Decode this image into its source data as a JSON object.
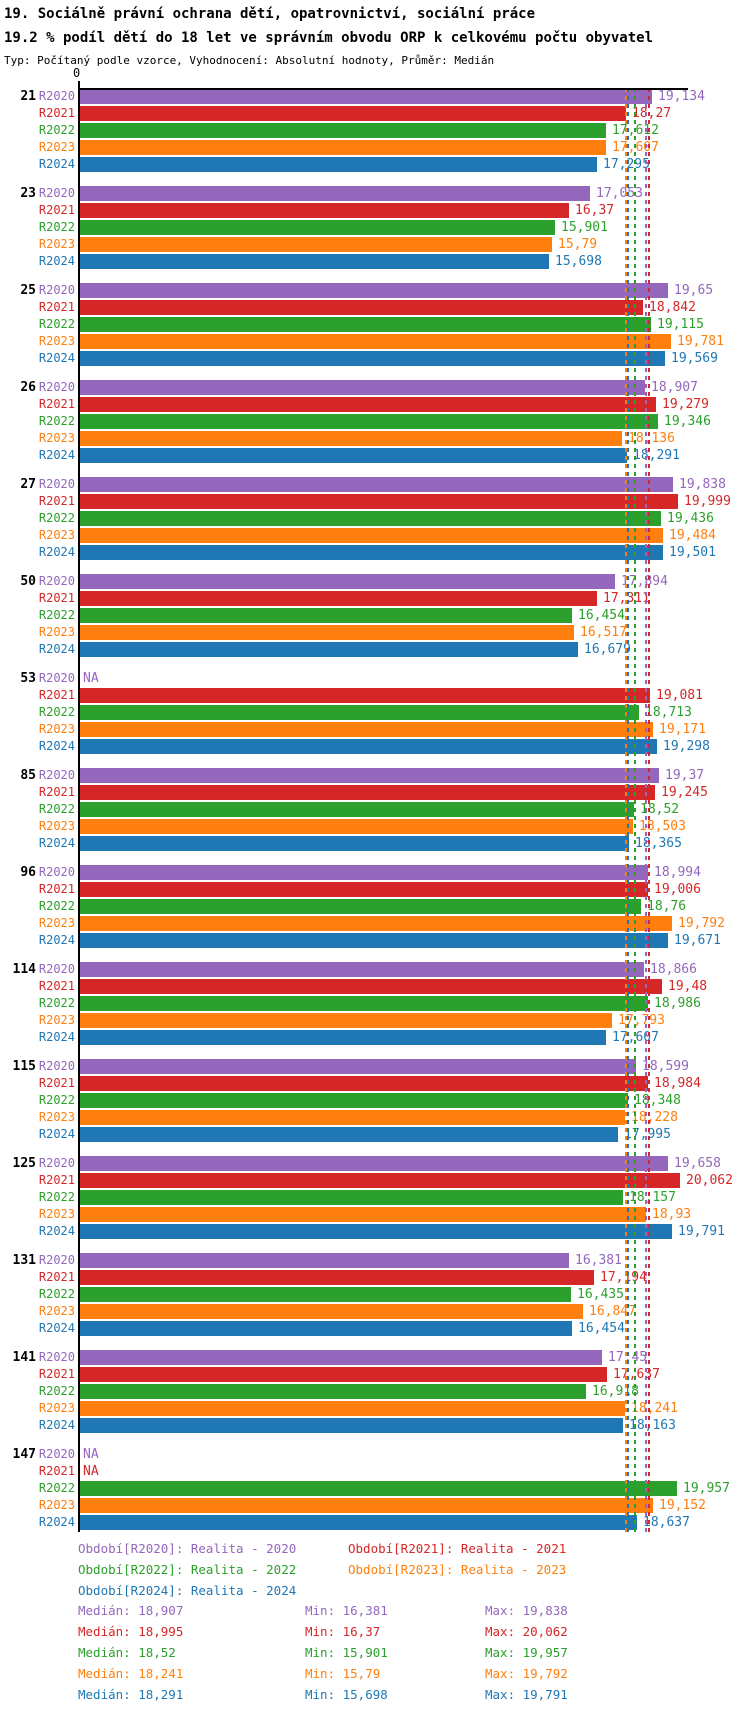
{
  "header": {
    "title": "19. Sociálně právní ochrana dětí, opatrovnictví, sociální práce",
    "subtitle": "19.2 % podíl dětí do 18 let ve správním obvodu ORP k celkovému počtu obyvatel",
    "meta": "Typ: Počítaný podle vzorce, Vyhodnocení: Absolutní hodnoty, Průměr: Medián"
  },
  "chart_data": {
    "type": "bar",
    "orientation": "horizontal",
    "x_zero_label": "0",
    "na_label": "NA",
    "axis_range": [
      0,
      20.4
    ],
    "grid": false,
    "legend_position": "bottom",
    "categories": [
      "21",
      "23",
      "25",
      "26",
      "27",
      "50",
      "53",
      "85",
      "96",
      "114",
      "115",
      "125",
      "131",
      "141",
      "147"
    ],
    "series": [
      {
        "name": "R2020",
        "color": "#9467bd",
        "legend_label": "Období[R2020]: Realita - 2020",
        "values": [
          19.134,
          17.053,
          19.65,
          18.907,
          19.838,
          17.894,
          null,
          19.37,
          18.994,
          18.866,
          18.599,
          19.658,
          16.381,
          17.45,
          null
        ],
        "labels": [
          "19,134",
          "17,053",
          "19,65",
          "18,907",
          "19,838",
          "17,894",
          "NA",
          "19,37",
          "18,994",
          "18,866",
          "18,599",
          "19,658",
          "16,381",
          "17,45",
          "NA"
        ],
        "median": 18.907,
        "stats": {
          "median": "Medián: 18,907",
          "min": "Min: 16,381",
          "max": "Max: 19,838"
        }
      },
      {
        "name": "R2021",
        "color": "#d62728",
        "legend_label": "Období[R2021]: Realita - 2021",
        "values": [
          18.27,
          16.37,
          18.842,
          19.279,
          19.999,
          17.311,
          19.081,
          19.245,
          19.006,
          19.48,
          18.984,
          20.062,
          17.194,
          17.637,
          null
        ],
        "labels": [
          "18,27",
          "16,37",
          "18,842",
          "19,279",
          "19,999",
          "17,311",
          "19,081",
          "19,245",
          "19,006",
          "19,48",
          "18,984",
          "20,062",
          "17,194",
          "17,637",
          "NA"
        ],
        "median": 18.995,
        "stats": {
          "median": "Medián: 18,995",
          "min": "Min: 16,37",
          "max": "Max: 20,062"
        }
      },
      {
        "name": "R2022",
        "color": "#2ca02c",
        "legend_label": "Období[R2022]: Realita - 2022",
        "values": [
          17.612,
          15.901,
          19.115,
          19.346,
          19.436,
          16.454,
          18.713,
          18.52,
          18.76,
          18.986,
          18.348,
          18.157,
          16.435,
          16.918,
          19.957
        ],
        "labels": [
          "17,612",
          "15,901",
          "19,115",
          "19,346",
          "19,436",
          "16,454",
          "18,713",
          "18,52",
          "18,76",
          "18,986",
          "18,348",
          "18,157",
          "16,435",
          "16,918",
          "19,957"
        ],
        "median": 18.52,
        "stats": {
          "median": "Medián: 18,52",
          "min": "Min: 15,901",
          "max": "Max: 19,957"
        }
      },
      {
        "name": "R2023",
        "color": "#ff7f0e",
        "legend_label": "Období[R2023]: Realita - 2023",
        "values": [
          17.607,
          15.79,
          19.781,
          18.136,
          19.484,
          16.517,
          19.171,
          18.503,
          19.792,
          17.793,
          18.228,
          18.93,
          16.847,
          18.241,
          19.152
        ],
        "labels": [
          "17,607",
          "15,79",
          "19,781",
          "18,136",
          "19,484",
          "16,517",
          "19,171",
          "18,503",
          "19,792",
          "17,793",
          "18,228",
          "18,93",
          "16,847",
          "18,241",
          "19,152"
        ],
        "median": 18.241,
        "stats": {
          "median": "Medián: 18,241",
          "min": "Min: 15,79",
          "max": "Max: 19,792"
        }
      },
      {
        "name": "R2024",
        "color": "#1f77b4",
        "legend_label": "Období[R2024]: Realita - 2024",
        "values": [
          17.295,
          15.698,
          19.569,
          18.291,
          19.501,
          16.679,
          19.298,
          18.365,
          19.671,
          17.607,
          17.995,
          19.791,
          16.454,
          18.163,
          18.637
        ],
        "labels": [
          "17,295",
          "15,698",
          "19,569",
          "18,291",
          "19,501",
          "16,679",
          "19,298",
          "18,365",
          "19,671",
          "17,607",
          "17,995",
          "19,791",
          "16,454",
          "18,163",
          "18,637"
        ],
        "median": 18.291,
        "stats": {
          "median": "Medián: 18,291",
          "min": "Min: 15,698",
          "max": "Max: 19,791"
        }
      }
    ]
  }
}
